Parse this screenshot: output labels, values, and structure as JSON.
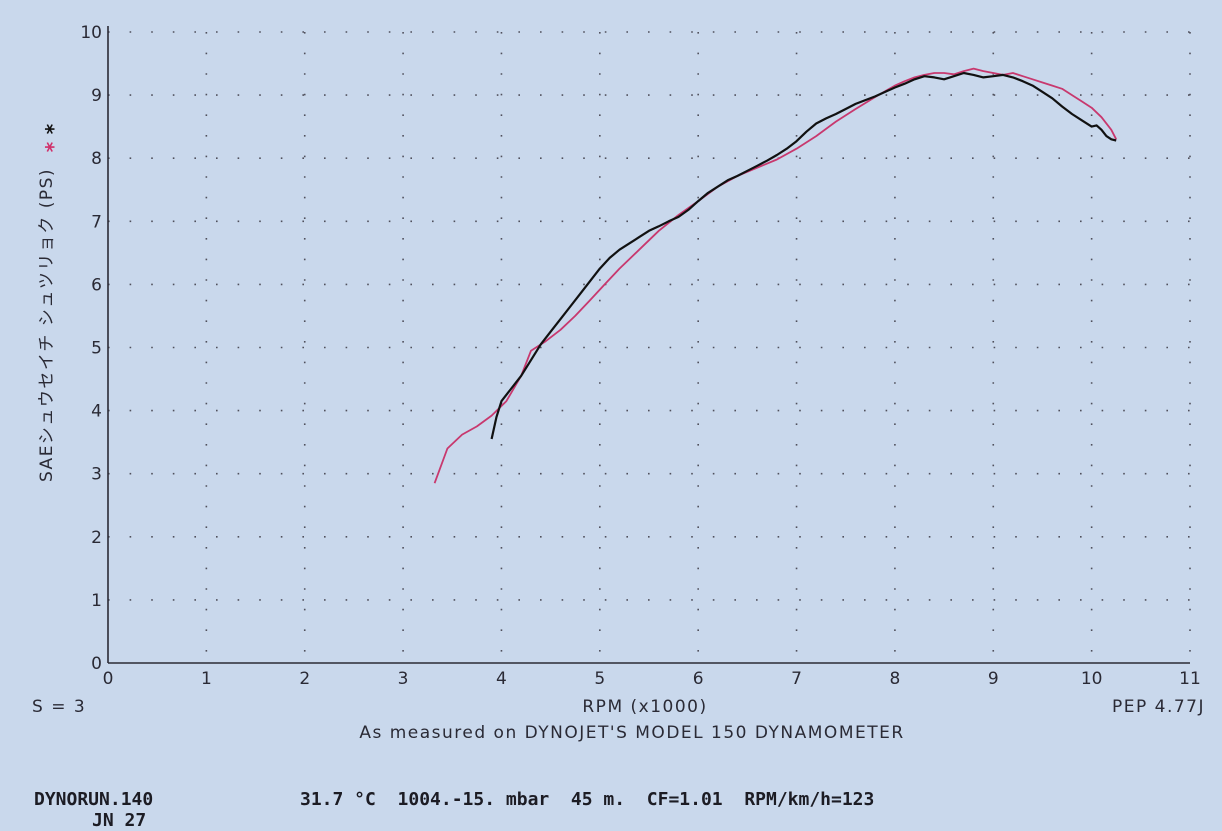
{
  "chart_data": {
    "type": "line",
    "xlabel": "RPM (x1000)",
    "ylabel": "SAEシュウセイチ シュツリョク (PS)",
    "xlim": [
      0,
      11
    ],
    "ylim": [
      0,
      10
    ],
    "x_ticks": [
      "0",
      "1",
      "2",
      "3",
      "4",
      "5",
      "6",
      "7",
      "8",
      "9",
      "10",
      "11"
    ],
    "y_ticks": [
      "0",
      "1",
      "2",
      "3",
      "4",
      "5",
      "6",
      "7",
      "8",
      "9",
      "10"
    ],
    "grid": "dotted",
    "legend_markers": [
      {
        "symbol": "*",
        "color": "#d0306a"
      },
      {
        "symbol": "*",
        "color": "#111111"
      }
    ],
    "series": [
      {
        "color": "#c8386e",
        "x": [
          3.32,
          3.45,
          3.6,
          3.75,
          3.9,
          4.05,
          4.2,
          4.3,
          4.45,
          4.6,
          4.75,
          4.9,
          5.05,
          5.2,
          5.4,
          5.6,
          5.8,
          6.0,
          6.2,
          6.4,
          6.6,
          6.8,
          7.0,
          7.2,
          7.4,
          7.6,
          7.8,
          8.0,
          8.1,
          8.2,
          8.3,
          8.4,
          8.5,
          8.6,
          8.7,
          8.8,
          8.9,
          9.0,
          9.1,
          9.2,
          9.3,
          9.4,
          9.5,
          9.6,
          9.7,
          9.8,
          9.9,
          10.0,
          10.1,
          10.2,
          10.25
        ],
        "y": [
          2.85,
          3.4,
          3.62,
          3.75,
          3.92,
          4.15,
          4.55,
          4.95,
          5.1,
          5.28,
          5.5,
          5.75,
          6.0,
          6.25,
          6.55,
          6.85,
          7.1,
          7.32,
          7.55,
          7.72,
          7.85,
          7.98,
          8.15,
          8.35,
          8.58,
          8.78,
          8.97,
          9.15,
          9.22,
          9.28,
          9.32,
          9.35,
          9.35,
          9.33,
          9.38,
          9.42,
          9.38,
          9.35,
          9.32,
          9.35,
          9.3,
          9.25,
          9.2,
          9.15,
          9.1,
          9.0,
          8.9,
          8.8,
          8.65,
          8.45,
          8.3
        ]
      },
      {
        "color": "#111111",
        "x": [
          3.9,
          3.95,
          4.0,
          4.1,
          4.2,
          4.3,
          4.4,
          4.5,
          4.6,
          4.7,
          4.8,
          4.9,
          5.0,
          5.1,
          5.2,
          5.3,
          5.4,
          5.5,
          5.6,
          5.7,
          5.8,
          5.9,
          6.0,
          6.1,
          6.2,
          6.3,
          6.4,
          6.5,
          6.6,
          6.7,
          6.8,
          6.9,
          7.0,
          7.1,
          7.2,
          7.3,
          7.4,
          7.5,
          7.6,
          7.7,
          7.8,
          7.9,
          8.0,
          8.1,
          8.2,
          8.3,
          8.4,
          8.5,
          8.6,
          8.7,
          8.8,
          8.9,
          9.0,
          9.1,
          9.2,
          9.3,
          9.4,
          9.5,
          9.6,
          9.7,
          9.8,
          9.9,
          10.0,
          10.05,
          10.1,
          10.15,
          10.2,
          10.25
        ],
        "y": [
          3.55,
          3.9,
          4.15,
          4.35,
          4.55,
          4.8,
          5.05,
          5.25,
          5.45,
          5.65,
          5.85,
          6.05,
          6.25,
          6.42,
          6.55,
          6.65,
          6.75,
          6.85,
          6.92,
          7.0,
          7.07,
          7.18,
          7.32,
          7.45,
          7.55,
          7.65,
          7.72,
          7.8,
          7.88,
          7.96,
          8.05,
          8.15,
          8.27,
          8.42,
          8.55,
          8.63,
          8.7,
          8.78,
          8.86,
          8.92,
          8.98,
          9.05,
          9.12,
          9.18,
          9.25,
          9.3,
          9.28,
          9.25,
          9.3,
          9.35,
          9.32,
          9.28,
          9.3,
          9.32,
          9.28,
          9.22,
          9.15,
          9.05,
          8.95,
          8.82,
          8.7,
          8.6,
          8.5,
          8.52,
          8.45,
          8.35,
          8.3,
          8.28
        ]
      }
    ]
  },
  "labels": {
    "s_value": "S = 3",
    "pep": "PEP 4.77J",
    "measured_note": "As measured on DYNOJET'S MODEL 150 DYNAMOMETER"
  },
  "footer": {
    "run_file": "DYNORUN.140",
    "conditions": "31.7 °C  1004.-15. mbar  45 m.  CF=1.01  RPM/km/h=123",
    "date_partial": "JN 27"
  }
}
